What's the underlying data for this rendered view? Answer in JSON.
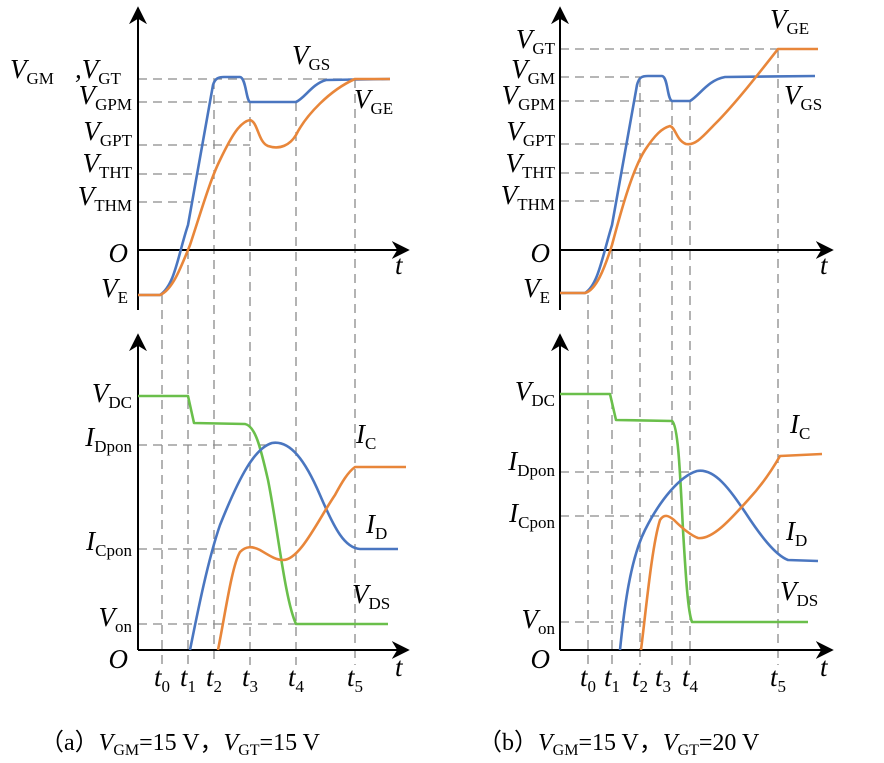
{
  "colors": {
    "blue": "#4a76c0",
    "orange": "#e8863a",
    "green": "#6abf4b",
    "grid": "#8a8a8a"
  },
  "panel_a": {
    "caption": {
      "prefix": "（a）",
      "v1": "V",
      "s1": "GM",
      "e1": "=15 V，",
      "v2": "V",
      "s2": "GT",
      "e2": "=15 V"
    },
    "top_labels": [
      {
        "v": "V",
        "s": "GM"
      },
      {
        "v": ",V",
        "s": "GT"
      },
      {
        "v": "V",
        "s": "GPM"
      },
      {
        "v": "V",
        "s": "GPT"
      },
      {
        "v": "V",
        "s": "THT"
      },
      {
        "v": "V",
        "s": "THM"
      },
      {
        "v": "O",
        "s": ""
      },
      {
        "v": "V",
        "s": "E"
      }
    ],
    "top_curve_labels": [
      {
        "v": "V",
        "s": "GS"
      },
      {
        "v": "V",
        "s": "GE"
      }
    ],
    "bottom_labels": [
      {
        "v": "V",
        "s": "DC"
      },
      {
        "v": "I",
        "s": "Dpon"
      },
      {
        "v": "I",
        "s": "Cpon"
      },
      {
        "v": "V",
        "s": "on"
      },
      {
        "v": "O",
        "s": ""
      }
    ],
    "bottom_curve_labels": [
      {
        "v": "I",
        "s": "C"
      },
      {
        "v": "I",
        "s": "D"
      },
      {
        "v": "V",
        "s": "DS"
      }
    ],
    "time_labels": [
      {
        "v": "t",
        "s": "0"
      },
      {
        "v": "t",
        "s": "1"
      },
      {
        "v": "t",
        "s": "2"
      },
      {
        "v": "t",
        "s": "3"
      },
      {
        "v": "t",
        "s": "4"
      },
      {
        "v": "t",
        "s": "5"
      }
    ],
    "axis_label": "t"
  },
  "panel_b": {
    "caption": {
      "prefix": "（b）",
      "v1": "V",
      "s1": "GM",
      "e1": "=15 V，",
      "v2": "V",
      "s2": "GT",
      "e2": "=20 V"
    },
    "top_labels": [
      {
        "v": "V",
        "s": "GT"
      },
      {
        "v": "V",
        "s": "GM"
      },
      {
        "v": "V",
        "s": "GPM"
      },
      {
        "v": "V",
        "s": "GPT"
      },
      {
        "v": "V",
        "s": "THT"
      },
      {
        "v": "V",
        "s": "THM"
      },
      {
        "v": "O",
        "s": ""
      },
      {
        "v": "V",
        "s": "E"
      }
    ],
    "top_curve_labels": [
      {
        "v": "V",
        "s": "GE"
      },
      {
        "v": "V",
        "s": "GS"
      }
    ],
    "bottom_labels": [
      {
        "v": "V",
        "s": "DC"
      },
      {
        "v": "I",
        "s": "Dpon"
      },
      {
        "v": "I",
        "s": "Cpon"
      },
      {
        "v": "V",
        "s": "on"
      },
      {
        "v": "O",
        "s": ""
      }
    ],
    "bottom_curve_labels": [
      {
        "v": "I",
        "s": "C"
      },
      {
        "v": "I",
        "s": "D"
      },
      {
        "v": "V",
        "s": "DS"
      }
    ],
    "time_labels": [
      {
        "v": "t",
        "s": "0"
      },
      {
        "v": "t",
        "s": "1"
      },
      {
        "v": "t",
        "s": "2"
      },
      {
        "v": "t",
        "s": "3"
      },
      {
        "v": "t",
        "s": "4"
      },
      {
        "v": "t",
        "s": "5"
      }
    ],
    "axis_label": "t"
  }
}
